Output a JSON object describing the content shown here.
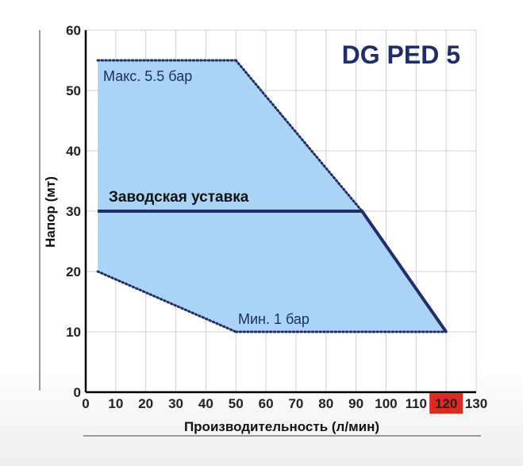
{
  "chart_data": {
    "type": "area",
    "title": "DG PED 5",
    "xlabel": "Производительность (л/мин)",
    "ylabel": "Напор (мт)",
    "xlim": [
      0,
      130
    ],
    "ylim": [
      0,
      60
    ],
    "x_ticks": [
      "0",
      "10",
      "20",
      "30",
      "40",
      "50",
      "60",
      "70",
      "80",
      "90",
      "100",
      "110",
      "120",
      "130"
    ],
    "y_ticks": [
      "0",
      "10",
      "20",
      "30",
      "40",
      "50",
      "60"
    ],
    "highlighted_x_tick": "120",
    "grid": true,
    "region": {
      "upper": [
        [
          4,
          55
        ],
        [
          50,
          55
        ],
        [
          92,
          30
        ],
        [
          120,
          10
        ]
      ],
      "lower": [
        [
          4,
          20
        ],
        [
          50,
          10
        ],
        [
          120,
          10
        ]
      ]
    },
    "series": [
      {
        "name": "Заводская уставка",
        "x": [
          4,
          92,
          120
        ],
        "y": [
          30,
          30,
          10
        ]
      }
    ],
    "annotations": {
      "max": "Макс. 5.5 бар",
      "min": "Мин. 1 бар",
      "setpoint": "Заводская уставка"
    },
    "colors": {
      "fill": "#a9d4f5",
      "line": "#1e2d6b",
      "highlight": "#e02a1f",
      "grid": "#cfcfcf"
    }
  }
}
